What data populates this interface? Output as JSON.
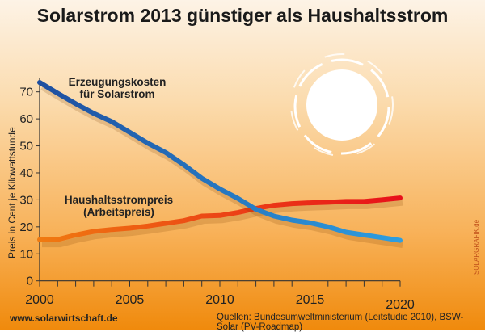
{
  "website": "www.solarwirtschaft.de",
  "sources": "Quellen: Bundesumweltministerium (Leitstudie 2010), BSW-Solar (PV-Roadmap)",
  "watermark": "SOLARGRAFIK.de",
  "chart_data": {
    "type": "line",
    "title": "Solarstrom 2013 günstiger als Haushaltsstrom",
    "ylabel": "Preis in Cent je Kilowattstunde",
    "xlabel": "",
    "xlim": [
      2000,
      2020
    ],
    "ylim": [
      0,
      75
    ],
    "xticks": [
      "2000",
      "2005",
      "2010",
      "2015",
      "2020"
    ],
    "yticks": [
      "0",
      "10",
      "20",
      "30",
      "40",
      "50",
      "60",
      "70"
    ],
    "grid": false,
    "x": [
      2000,
      2001,
      2002,
      2003,
      2004,
      2005,
      2006,
      2007,
      2008,
      2009,
      2010,
      2011,
      2012,
      2013,
      2014,
      2015,
      2016,
      2017,
      2018,
      2019,
      2020
    ],
    "series": [
      {
        "name": "Erzeugungskosten für Solarstrom",
        "label_lines": [
          "Erzeugungskosten",
          "für Solarstrom"
        ],
        "color": "#1e4fa0",
        "color_end": "#2e9ee0",
        "values": [
          73.5,
          69.5,
          65.6,
          62,
          59,
          55,
          51,
          47.5,
          43,
          38,
          34,
          30.5,
          26.5,
          24,
          22.5,
          21.5,
          20,
          18,
          17,
          16,
          15
        ]
      },
      {
        "name": "Haushaltsstrompreis (Arbeitspreis)",
        "label_lines": [
          "Haushaltsstrompreis",
          "(Arbeitspreis)"
        ],
        "color": "#f07a10",
        "color_end": "#e8101a",
        "values": [
          15.3,
          15.3,
          17,
          18.3,
          19,
          19.5,
          20.3,
          21.3,
          22.3,
          24,
          24.2,
          25.3,
          26.8,
          28,
          28.6,
          28.9,
          29.1,
          29.4,
          29.4,
          30,
          30.7
        ]
      }
    ]
  }
}
